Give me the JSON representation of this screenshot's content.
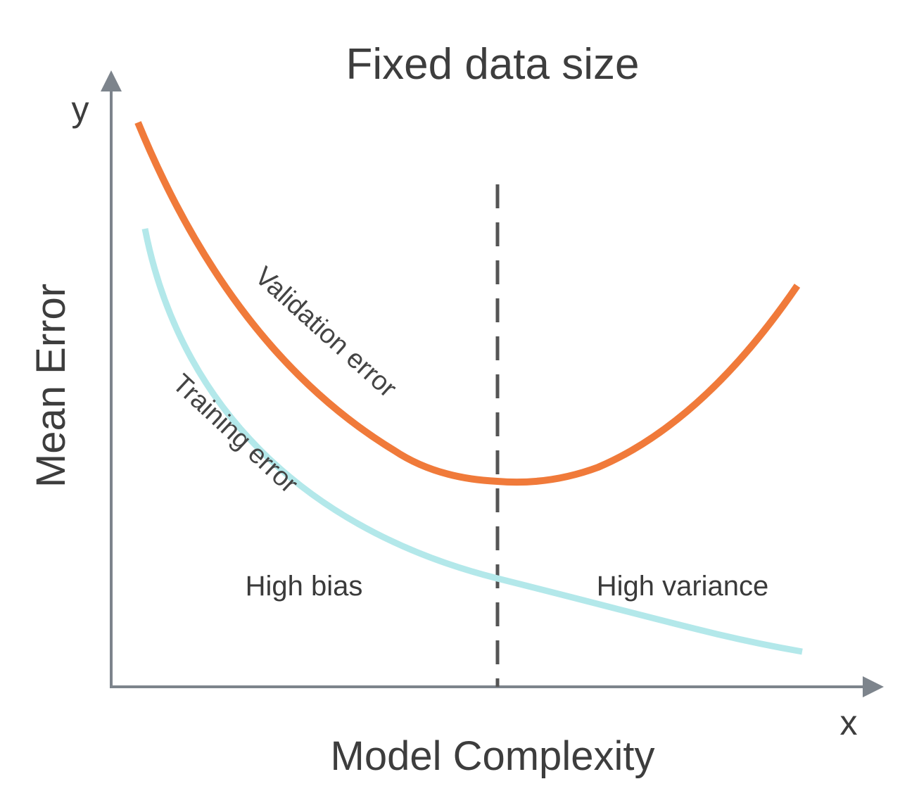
{
  "title": "Fixed data size",
  "x_axis": {
    "label": "Model Complexity",
    "letter": "x"
  },
  "y_axis": {
    "label": "Mean Error",
    "letter": "y"
  },
  "curves": {
    "validation": {
      "label": "Validation error",
      "color": "#f07a3a"
    },
    "training": {
      "label": "Training error",
      "color": "#b3e8ea"
    }
  },
  "regions": {
    "left": "High bias",
    "right": "High variance"
  },
  "colors": {
    "axis": "#7d848c",
    "divider": "#555555",
    "text": "#3d3d3d"
  }
}
